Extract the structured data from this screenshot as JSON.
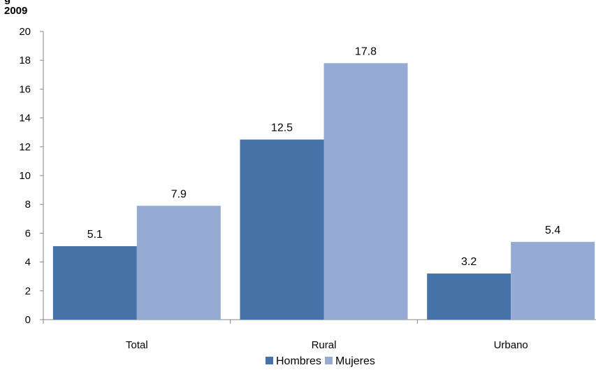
{
  "header": {
    "cut_title": "g",
    "year": "2009"
  },
  "chart_data": {
    "type": "bar",
    "categories": [
      "Total",
      "Rural",
      "Urbano"
    ],
    "series": [
      {
        "name": "Hombres",
        "values": [
          5.1,
          12.5,
          3.2
        ],
        "color": "#4572a7"
      },
      {
        "name": "Mujeres",
        "values": [
          7.9,
          17.8,
          5.4
        ],
        "color": "#95abd4"
      }
    ],
    "data_labels": [
      [
        "5.1",
        "12.5",
        "3.2"
      ],
      [
        "7.9",
        "17.8",
        "5.4"
      ]
    ],
    "ylim": [
      0,
      20
    ],
    "yticks": [
      0,
      2,
      4,
      6,
      8,
      10,
      12,
      14,
      16,
      18,
      20
    ],
    "grid": false,
    "legend": "bottom-center"
  }
}
